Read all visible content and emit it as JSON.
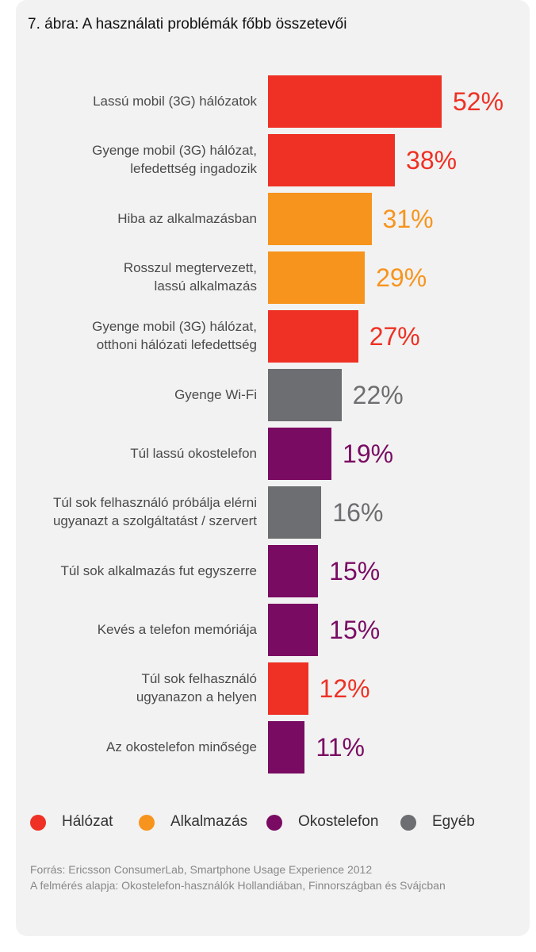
{
  "chart_data": {
    "type": "bar",
    "orientation": "horizontal",
    "title": "7. ábra: A használati problémák főbb összetevői",
    "xlabel": "",
    "ylabel": "",
    "xlim": [
      0,
      100
    ],
    "categories": [
      "Lassú mobil (3G) hálózatok",
      "Gyenge mobil (3G) hálózat,\nlefedettség ingadozik",
      "Hiba az alkalmazásban",
      "Rosszul megtervezett,\nlassú alkalmazás",
      "Gyenge mobil (3G) hálózat,\notthoni hálózati lefedettség",
      "Gyenge Wi-Fi",
      "Túl lassú okostelefon",
      "Túl sok felhasználó próbálja elérni\nugyanazt a szolgáltatást / szervert",
      "Túl sok alkalmazás fut egyszerre",
      "Kevés a telefon memóriája",
      "Túl sok felhasználó\nugyanazon a helyen",
      "Az okostelefon minősége"
    ],
    "values": [
      52,
      38,
      31,
      29,
      27,
      22,
      19,
      16,
      15,
      15,
      12,
      11
    ],
    "value_labels": [
      "52%",
      "38%",
      "31%",
      "29%",
      "27%",
      "22%",
      "19%",
      "16%",
      "15%",
      "15%",
      "12%",
      "11%"
    ],
    "groups": [
      "Hálózat",
      "Hálózat",
      "Alkalmazás",
      "Alkalmazás",
      "Hálózat",
      "Egyéb",
      "Okostelefon",
      "Egyéb",
      "Okostelefon",
      "Okostelefon",
      "Hálózat",
      "Okostelefon"
    ],
    "legend": [
      {
        "name": "Hálózat",
        "color": "#ee3124"
      },
      {
        "name": "Alkalmazás",
        "color": "#f7941d"
      },
      {
        "name": "Okostelefon",
        "color": "#7a0b63"
      },
      {
        "name": "Egyéb",
        "color": "#6d6e71"
      }
    ],
    "legend_position": "bottom"
  },
  "footer": {
    "source": "Forrás: Ericsson ConsumerLab, Smartphone Usage Experience 2012",
    "basis": "A felmérés alapja: Okostelefon-használók Hollandiában, Finnországban és Svájcban"
  }
}
